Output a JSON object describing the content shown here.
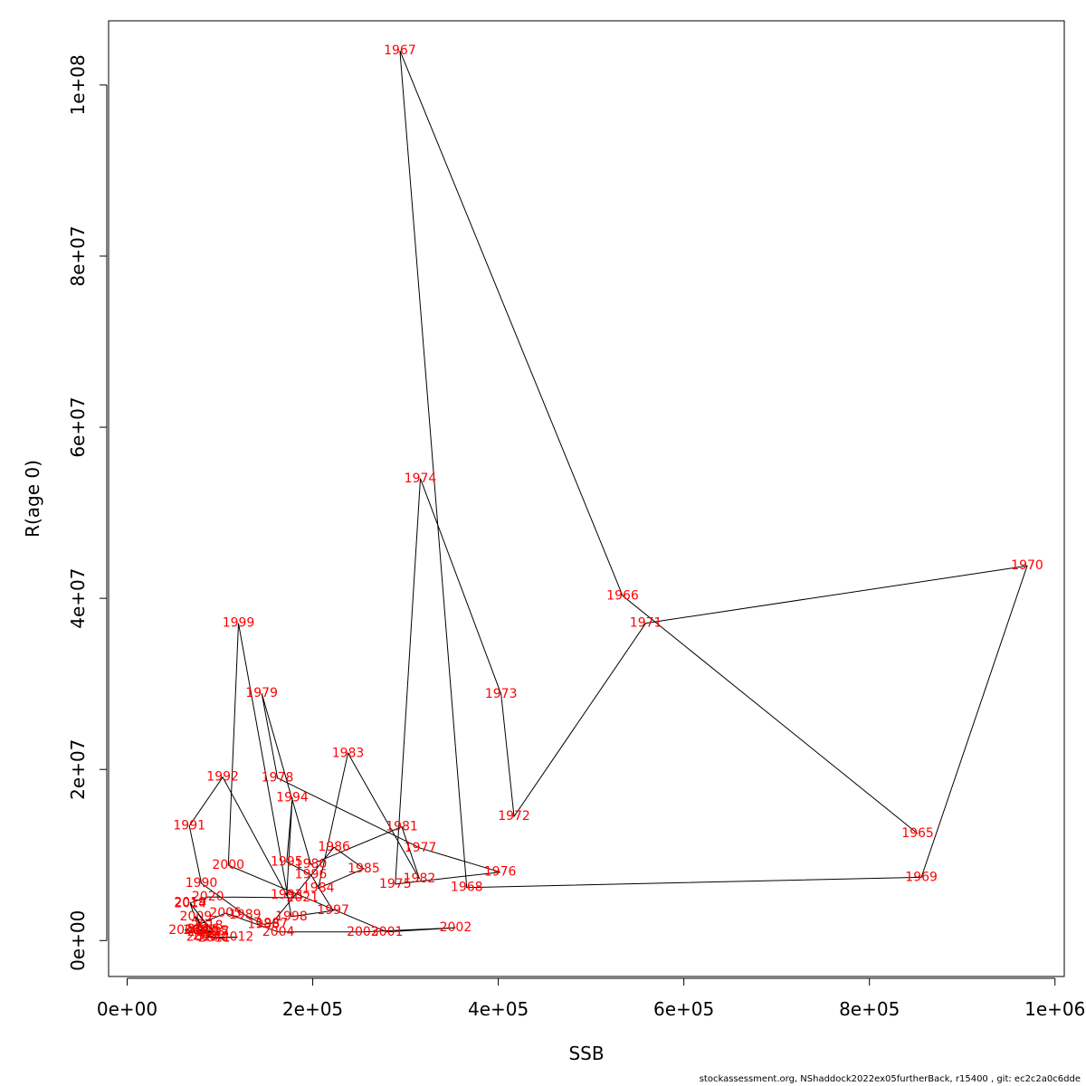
{
  "chart_data": {
    "type": "line",
    "title": "",
    "xlabel": "SSB",
    "ylabel": "R(age 0)",
    "xlim": [
      -20000,
      1010000
    ],
    "ylim": [
      -4200000,
      107500000
    ],
    "x_ticks": [
      0,
      200000,
      400000,
      600000,
      800000,
      1000000
    ],
    "x_tick_labels": [
      "0e+00",
      "2e+05",
      "4e+05",
      "6e+05",
      "8e+05",
      "1e+06"
    ],
    "y_ticks": [
      0,
      20000000,
      40000000,
      60000000,
      80000000,
      100000000
    ],
    "y_tick_labels": [
      "0e+00",
      "2e+07",
      "4e+07",
      "6e+07",
      "8e+07",
      "1e+08"
    ],
    "grid": false,
    "line_color": "#000000",
    "label_color": "#ff0000",
    "points": [
      {
        "year": "1965",
        "x": 852000,
        "y": 12500000
      },
      {
        "year": "1966",
        "x": 534000,
        "y": 40300000
      },
      {
        "year": "1967",
        "x": 294000,
        "y": 104000000
      },
      {
        "year": "1968",
        "x": 366000,
        "y": 6200000
      },
      {
        "year": "1969",
        "x": 856000,
        "y": 7400000
      },
      {
        "year": "1970",
        "x": 970000,
        "y": 43800000
      },
      {
        "year": "1971",
        "x": 559000,
        "y": 37100000
      },
      {
        "year": "1972",
        "x": 417000,
        "y": 14500000
      },
      {
        "year": "1973",
        "x": 403000,
        "y": 28800000
      },
      {
        "year": "1974",
        "x": 316000,
        "y": 54000000
      },
      {
        "year": "1975",
        "x": 289000,
        "y": 6600000
      },
      {
        "year": "1976",
        "x": 402000,
        "y": 8000000
      },
      {
        "year": "1977",
        "x": 316000,
        "y": 10800000
      },
      {
        "year": "1978",
        "x": 162000,
        "y": 19000000
      },
      {
        "year": "1979",
        "x": 145000,
        "y": 28900000
      },
      {
        "year": "1980",
        "x": 198000,
        "y": 8900000
      },
      {
        "year": "1981",
        "x": 296000,
        "y": 13300000
      },
      {
        "year": "1982",
        "x": 315000,
        "y": 7200000
      },
      {
        "year": "1983",
        "x": 238000,
        "y": 21900000
      },
      {
        "year": "1984",
        "x": 206000,
        "y": 6100000
      },
      {
        "year": "1985",
        "x": 255000,
        "y": 8400000
      },
      {
        "year": "1986",
        "x": 223000,
        "y": 10900000
      },
      {
        "year": "1987",
        "x": 156000,
        "y": 2000000
      },
      {
        "year": "1988",
        "x": 147000,
        "y": 1900000
      },
      {
        "year": "1989",
        "x": 127000,
        "y": 3000000
      },
      {
        "year": "1990",
        "x": 80000,
        "y": 6700000
      },
      {
        "year": "1991",
        "x": 67000,
        "y": 13400000
      },
      {
        "year": "1992",
        "x": 103000,
        "y": 19100000
      },
      {
        "year": "1993",
        "x": 172000,
        "y": 5300000
      },
      {
        "year": "1994",
        "x": 178000,
        "y": 16700000
      },
      {
        "year": "1995",
        "x": 172000,
        "y": 9200000
      },
      {
        "year": "1996",
        "x": 198000,
        "y": 7700000
      },
      {
        "year": "1997",
        "x": 222000,
        "y": 3500000
      },
      {
        "year": "1998",
        "x": 177000,
        "y": 2800000
      },
      {
        "year": "1999",
        "x": 120000,
        "y": 37100000
      },
      {
        "year": "2000",
        "x": 109000,
        "y": 8800000
      },
      {
        "year": "2001",
        "x": 280000,
        "y": 1000000
      },
      {
        "year": "2002",
        "x": 354000,
        "y": 1500000
      },
      {
        "year": "2003",
        "x": 254000,
        "y": 1000000
      },
      {
        "year": "2004",
        "x": 163000,
        "y": 1000000
      },
      {
        "year": "2005",
        "x": 106000,
        "y": 3200000
      },
      {
        "year": "2006",
        "x": 62000,
        "y": 1200000
      },
      {
        "year": "2007",
        "x": 93000,
        "y": 1000000
      },
      {
        "year": "2008",
        "x": 88000,
        "y": 500000
      },
      {
        "year": "2009",
        "x": 74000,
        "y": 2800000
      },
      {
        "year": "2010",
        "x": 82000,
        "y": 1000000
      },
      {
        "year": "2011",
        "x": 94000,
        "y": 300000
      },
      {
        "year": "2012",
        "x": 119000,
        "y": 400000
      },
      {
        "year": "2013",
        "x": 81000,
        "y": 400000
      },
      {
        "year": "2014",
        "x": 68000,
        "y": 4300000
      },
      {
        "year": "2015",
        "x": 92000,
        "y": 1100000
      },
      {
        "year": "2016",
        "x": 82000,
        "y": 1300000
      },
      {
        "year": "2017",
        "x": 78000,
        "y": 1200000
      },
      {
        "year": "2018",
        "x": 86000,
        "y": 1700000
      },
      {
        "year": "2019",
        "x": 68000,
        "y": 4400000
      },
      {
        "year": "2020",
        "x": 87000,
        "y": 5100000
      },
      {
        "year": "2021",
        "x": 189000,
        "y": 5000000
      }
    ]
  },
  "footer_text": "stockassessment.org, NShaddock2022ex05furtherBack, r15400 , git: ec2c2a0c6dde"
}
